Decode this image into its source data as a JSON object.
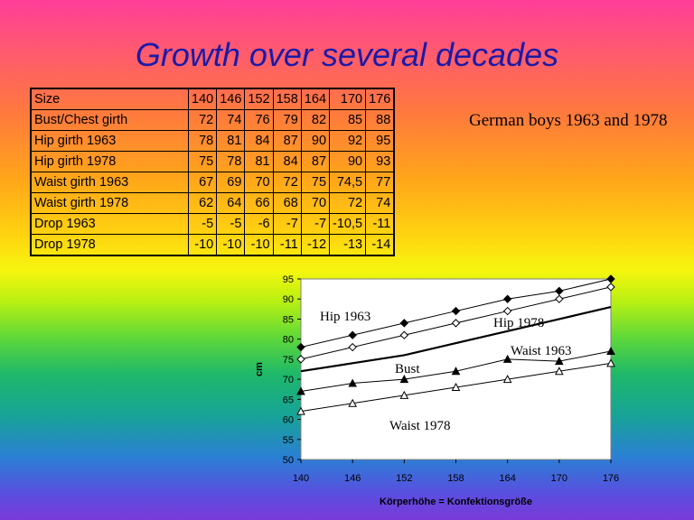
{
  "title": "Growth over several decades",
  "note": "German boys 1963 and 1978",
  "table": {
    "header": [
      "Size",
      "140",
      "146",
      "152",
      "158",
      "164",
      "170",
      "176"
    ],
    "rows": [
      [
        "Bust/Chest girth",
        "72",
        "74",
        "76",
        "79",
        "82",
        "85",
        "88"
      ],
      [
        "Hip girth 1963",
        "78",
        "81",
        "84",
        "87",
        "90",
        "92",
        "95"
      ],
      [
        "Hip girth 1978",
        "75",
        "78",
        "81",
        "84",
        "87",
        "90",
        "93"
      ],
      [
        "Waist girth 1963",
        "67",
        "69",
        "70",
        "72",
        "75",
        "74,5",
        "77"
      ],
      [
        "Waist girth  1978",
        "62",
        "64",
        "66",
        "68",
        "70",
        "72",
        "74"
      ],
      [
        "Drop 1963",
        "-5",
        "-5",
        "-6",
        "-7",
        "-7",
        "-10,5",
        "-11"
      ],
      [
        "Drop 1978",
        "-10",
        "-10",
        "-10",
        "-11",
        "-12",
        "-13",
        "-14"
      ]
    ]
  },
  "chart_data": {
    "type": "line",
    "x": [
      140,
      146,
      152,
      158,
      164,
      170,
      176
    ],
    "xlabel": "Körperhöhe = Konfektionsgröße",
    "ylabel": "cm",
    "ylim": [
      50,
      95
    ],
    "yticks": [
      50,
      55,
      60,
      65,
      70,
      75,
      80,
      85,
      90,
      95
    ],
    "grid": false,
    "series": [
      {
        "name": "Hip 1963",
        "values": [
          78,
          81,
          84,
          87,
          90,
          92,
          95
        ],
        "marker": "filled-diamond"
      },
      {
        "name": "Hip 1978",
        "values": [
          75,
          78,
          81,
          84,
          87,
          90,
          93
        ],
        "marker": "open-diamond"
      },
      {
        "name": "Bust",
        "values": [
          72,
          74,
          76,
          79,
          82,
          85,
          88
        ],
        "marker": "none"
      },
      {
        "name": "Waist 1963",
        "values": [
          67,
          69,
          70,
          72,
          75,
          74.5,
          77
        ],
        "marker": "filled-triangle"
      },
      {
        "name": "Waist 1978",
        "values": [
          62,
          64,
          66,
          68,
          70,
          72,
          74
        ],
        "marker": "open-triangle"
      }
    ]
  }
}
